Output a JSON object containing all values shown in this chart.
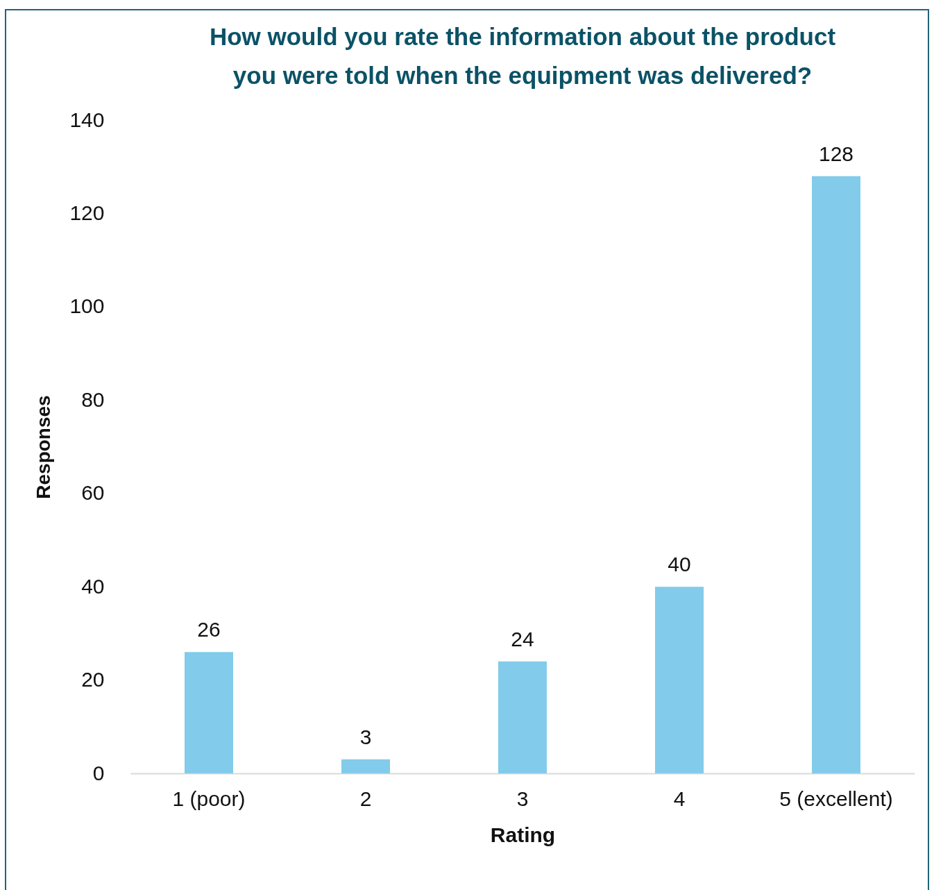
{
  "chart_data": {
    "type": "bar",
    "title": "How would you rate the information about the product\nyou were told when the equipment was delivered?",
    "xlabel": "Rating",
    "ylabel": "Responses",
    "categories": [
      "1 (poor)",
      "2",
      "3",
      "4",
      "5 (excellent)"
    ],
    "values": [
      26,
      3,
      24,
      40,
      128
    ],
    "color": "#82cbea",
    "ylim": [
      0,
      140
    ],
    "yticks": [
      0,
      20,
      40,
      60,
      80,
      100,
      120,
      140
    ],
    "data_labels": true
  }
}
